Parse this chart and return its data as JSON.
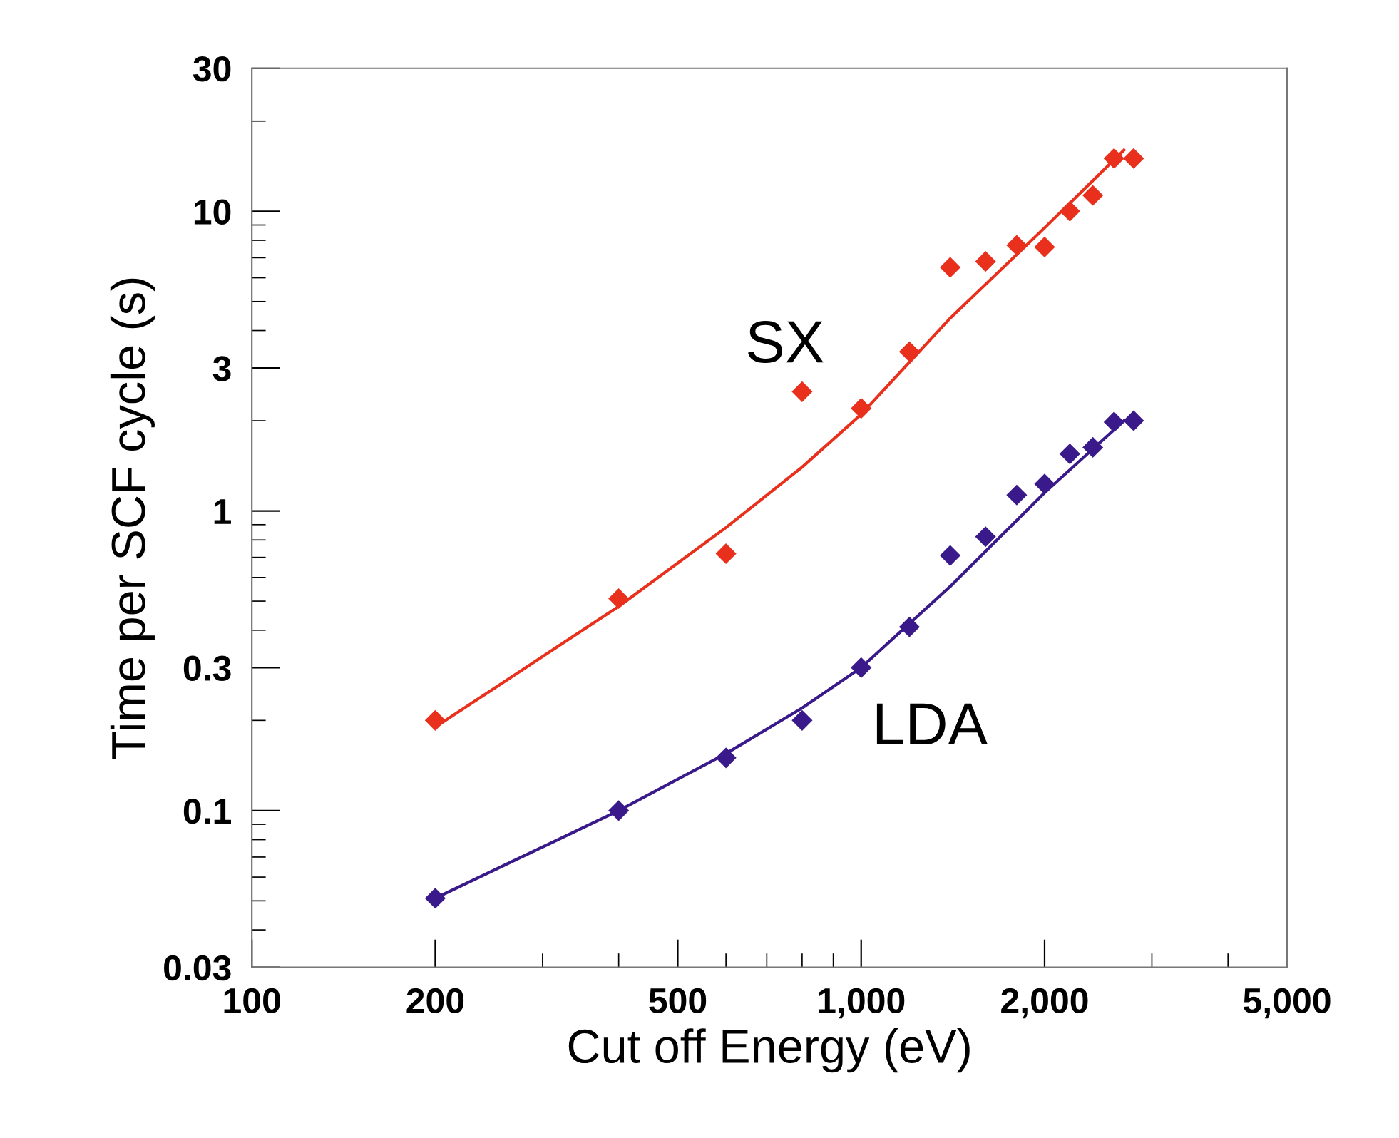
{
  "chart_data": {
    "type": "scatter",
    "xlabel": "Cut off Energy (eV)",
    "ylabel": "Time per SCF cycle (s)",
    "log": "xy",
    "grid": false,
    "legend": false,
    "xlim": [
      100,
      5000
    ],
    "xticks": [
      {
        "value": 100,
        "label": "100"
      },
      {
        "value": 200,
        "label": "200"
      },
      {
        "value": 500,
        "label": "500"
      },
      {
        "value": 1000,
        "label": "1,000"
      },
      {
        "value": 2000,
        "label": "2,000"
      },
      {
        "value": 5000,
        "label": "5,000"
      }
    ],
    "ylim": [
      0.03,
      30
    ],
    "yticks": [
      0.03,
      0.1,
      0.3,
      1,
      3,
      10,
      30
    ],
    "series": [
      {
        "name": "SX",
        "marker": "diamond",
        "color": "#e8301c",
        "x": [
          200,
          400,
          600,
          800,
          1000,
          1200,
          1400,
          1600,
          1800,
          2000,
          2200,
          2400,
          2600,
          2800
        ],
        "values": [
          0.2,
          0.51,
          0.72,
          2.5,
          2.2,
          3.4,
          6.5,
          6.8,
          7.7,
          7.6,
          10,
          11.3,
          15,
          15
        ]
      },
      {
        "type": "line",
        "marker": "none",
        "color": "#e8301c",
        "x": [
          200,
          400,
          600,
          800,
          1000,
          1400,
          2000,
          2700
        ],
        "values": [
          0.19,
          0.48,
          0.88,
          1.4,
          2.1,
          4.4,
          8.8,
          16
        ]
      },
      {
        "name": "LDA",
        "marker": "diamond",
        "color": "#3a1a8a",
        "x": [
          200,
          400,
          600,
          800,
          1000,
          1200,
          1400,
          1600,
          1800,
          2000,
          2200,
          2400,
          2600,
          2800
        ],
        "values": [
          0.051,
          0.1,
          0.15,
          0.2,
          0.3,
          0.41,
          0.71,
          0.82,
          1.13,
          1.23,
          1.55,
          1.63,
          1.98,
          2.0
        ]
      },
      {
        "type": "line",
        "marker": "none",
        "color": "#3a1a8a",
        "x": [
          200,
          400,
          600,
          800,
          1000,
          1400,
          2000,
          2700
        ],
        "values": [
          0.051,
          0.1,
          0.155,
          0.22,
          0.3,
          0.56,
          1.15,
          2.0
        ]
      }
    ]
  }
}
